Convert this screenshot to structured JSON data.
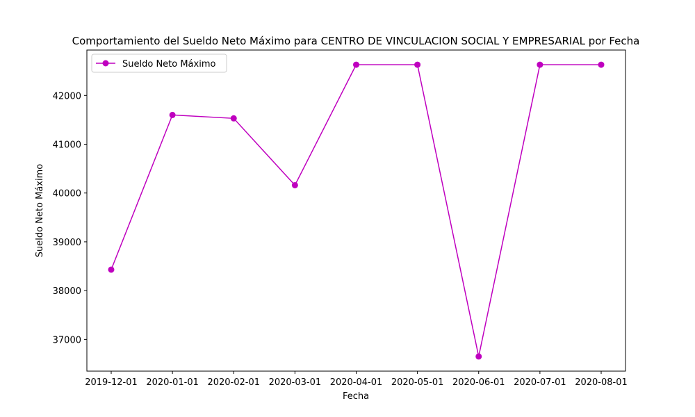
{
  "chart_data": {
    "type": "line",
    "title": "Comportamiento del Sueldo Neto Máximo para CENTRO DE VINCULACION SOCIAL Y EMPRESARIAL por Fecha",
    "xlabel": "Fecha",
    "ylabel": "Sueldo Neto Máximo",
    "categories": [
      "2019-12-01",
      "2020-01-01",
      "2020-02-01",
      "2020-03-01",
      "2020-04-01",
      "2020-05-01",
      "2020-06-01",
      "2020-07-01",
      "2020-08-01"
    ],
    "series": [
      {
        "name": "Sueldo Neto Máximo",
        "color": "#bf00bf",
        "marker": "circle",
        "values": [
          38430,
          41600,
          41530,
          40160,
          42630,
          42630,
          36650,
          42630,
          42630
        ]
      }
    ],
    "yticks": [
      "37000",
      "38000",
      "39000",
      "40000",
      "41000",
      "42000"
    ],
    "ylim": [
      36350,
      42930
    ],
    "grid": false,
    "legend_position": "top-left"
  }
}
